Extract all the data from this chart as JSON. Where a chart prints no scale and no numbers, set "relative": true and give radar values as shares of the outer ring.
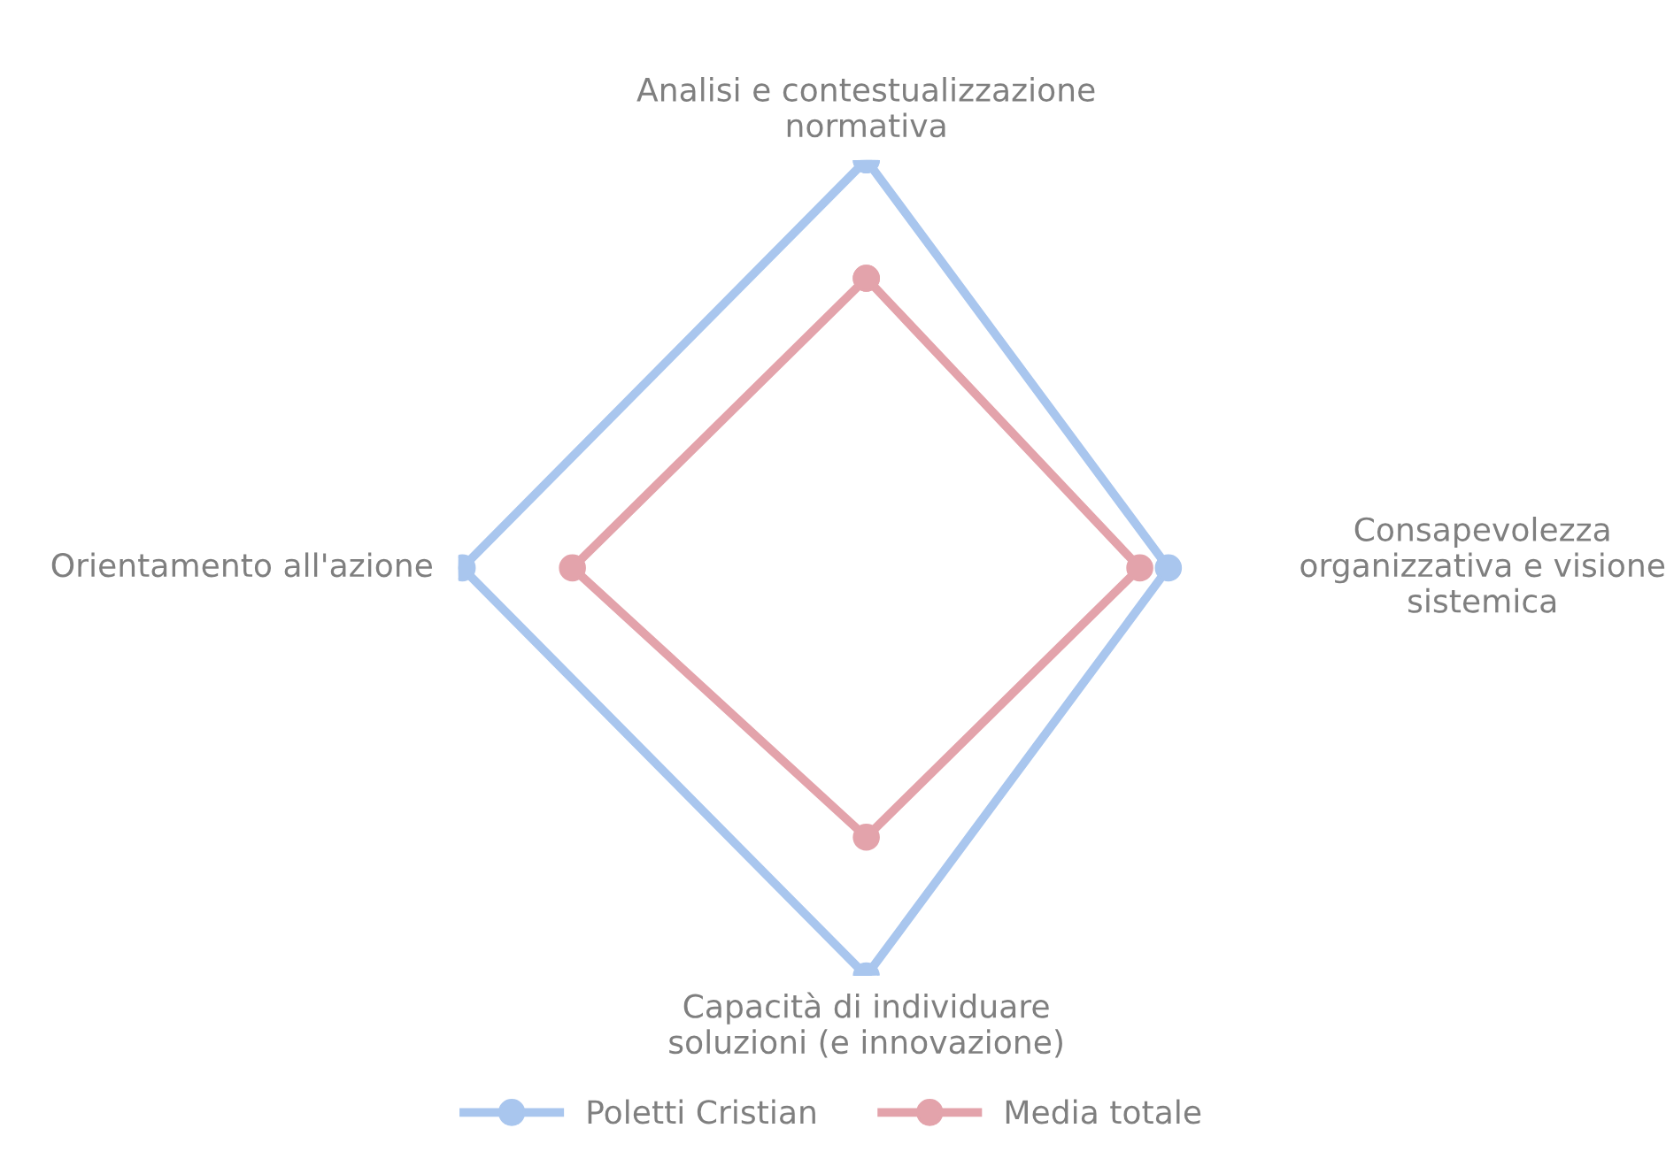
{
  "chart_data": {
    "type": "radar",
    "relative": true,
    "marker": "circle",
    "line_style": "solid",
    "legend": "bottom",
    "grid": false,
    "categories": [
      "Analisi e contestualizzazione\nnormativa",
      "Consapevolezza\norganizzativa e visione\nsistemica",
      "Capacità di individuare\nsoluzioni (e innovazione)",
      "Orientamento all'azione"
    ],
    "series": [
      {
        "name": "Poletti Cristian",
        "color": "#a9c6ee",
        "values": [
          1.0,
          0.74,
          1.0,
          0.99
        ]
      },
      {
        "name": "Media totale",
        "color": "#e3a3ab",
        "values": [
          0.71,
          0.67,
          0.66,
          0.72
        ]
      }
    ]
  }
}
